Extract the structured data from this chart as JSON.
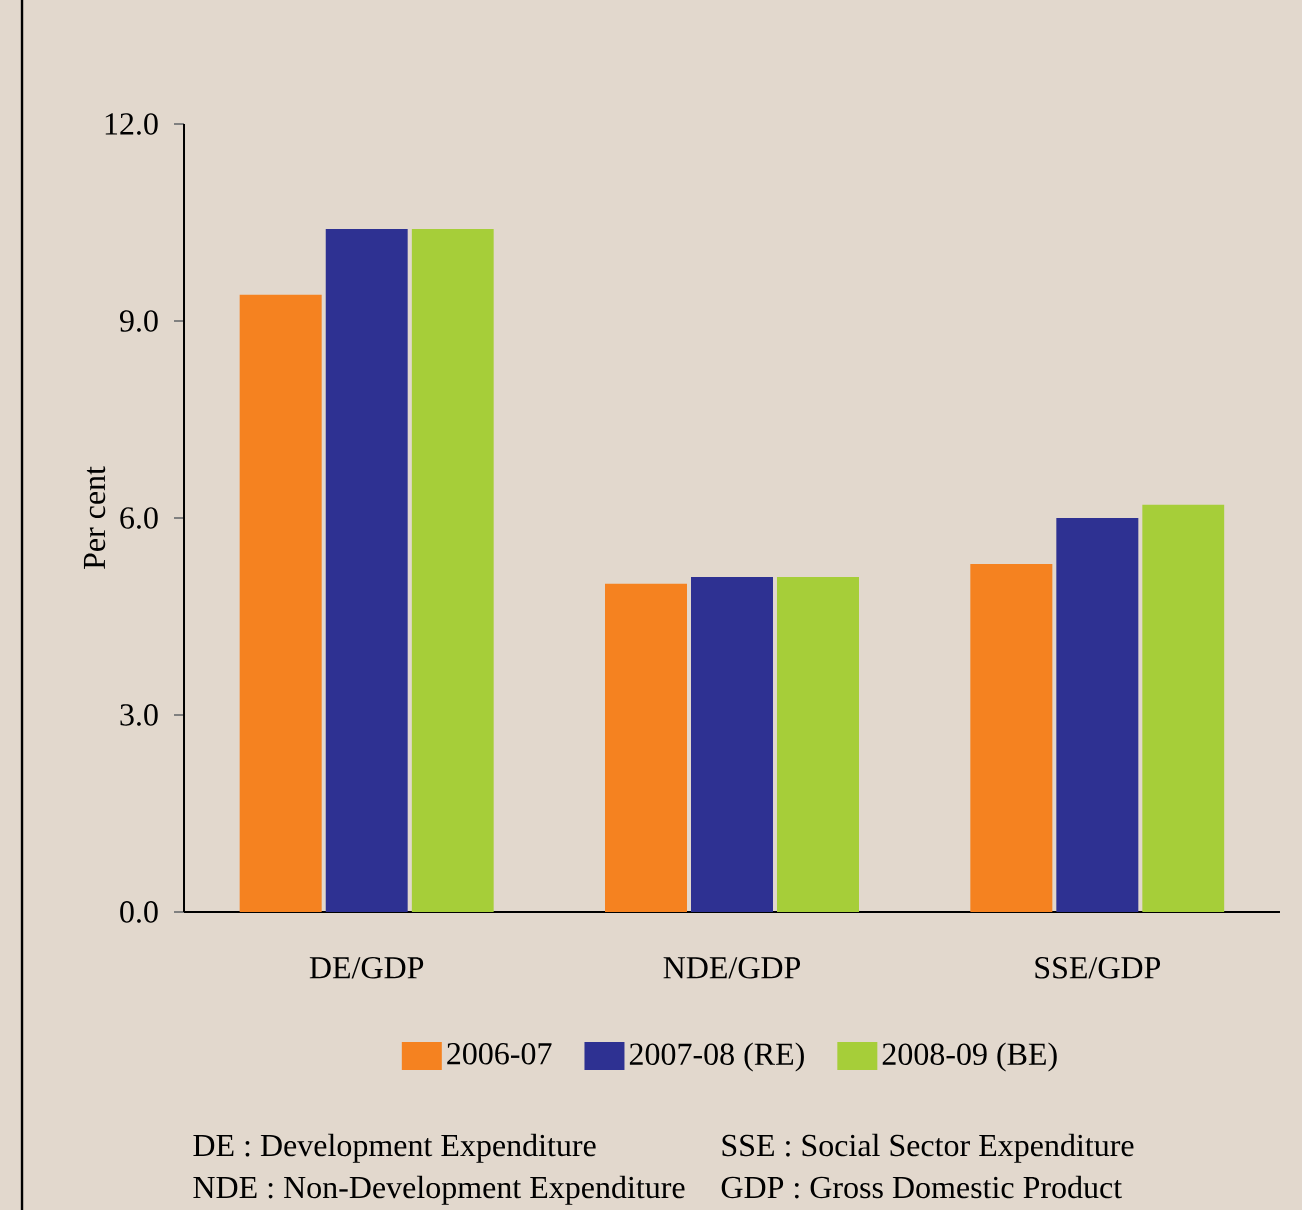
{
  "chart_data": {
    "type": "bar",
    "ylabel": "Per cent",
    "categories": [
      "DE/GDP",
      "NDE/GDP",
      "SSE/GDP"
    ],
    "series": [
      {
        "name": "2006-07",
        "color": "#f58220",
        "values": [
          9.4,
          5.0,
          5.3
        ]
      },
      {
        "name": "2007-08 (RE)",
        "color": "#2e3192",
        "values": [
          10.4,
          5.1,
          6.0
        ]
      },
      {
        "name": "2008-09 (BE)",
        "color": "#a6ce39",
        "values": [
          10.4,
          5.1,
          6.2
        ]
      }
    ],
    "ylim": [
      0,
      12
    ],
    "yticks": [
      {
        "value": 0,
        "label": "0.0"
      },
      {
        "value": 3,
        "label": "3.0"
      },
      {
        "value": 6,
        "label": "6.0"
      },
      {
        "value": 9,
        "label": "9.0"
      },
      {
        "value": 12,
        "label": "12.0"
      }
    ],
    "grid": false,
    "legend": "bottom",
    "annotations": [
      "DE\t: Development Expenditure",
      "SSE : Social Sector Expenditure",
      "NDE : Non-Development Expenditure",
      "GDP : Gross Domestic Product"
    ]
  }
}
